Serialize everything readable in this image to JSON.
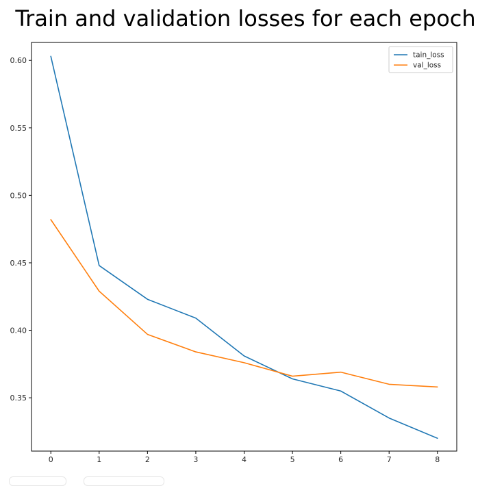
{
  "chart_data": {
    "type": "line",
    "title": "Train and validation losses for each epoch",
    "xlabel": "",
    "ylabel": "",
    "x": [
      0,
      1,
      2,
      3,
      4,
      5,
      6,
      7,
      8
    ],
    "xlim": [
      -0.4,
      8.4
    ],
    "ylim": [
      0.3105,
      0.6133
    ],
    "xticks": [
      "0",
      "1",
      "2",
      "3",
      "4",
      "5",
      "6",
      "7",
      "8"
    ],
    "yticks": [
      0.35,
      0.4,
      0.45,
      0.5,
      0.55,
      0.6
    ],
    "ytick_labels": [
      "0.35",
      "0.40",
      "0.45",
      "0.50",
      "0.55",
      "0.60"
    ],
    "grid": false,
    "legend_position": "top-right",
    "series": [
      {
        "name": "tain_loss",
        "color": "#1f77b4",
        "values": [
          0.603,
          0.448,
          0.423,
          0.409,
          0.381,
          0.364,
          0.355,
          0.335,
          0.32
        ]
      },
      {
        "name": "val_loss",
        "color": "#ff7f0e",
        "values": [
          0.482,
          0.429,
          0.397,
          0.384,
          0.376,
          0.366,
          0.369,
          0.36,
          0.358
        ]
      }
    ]
  }
}
